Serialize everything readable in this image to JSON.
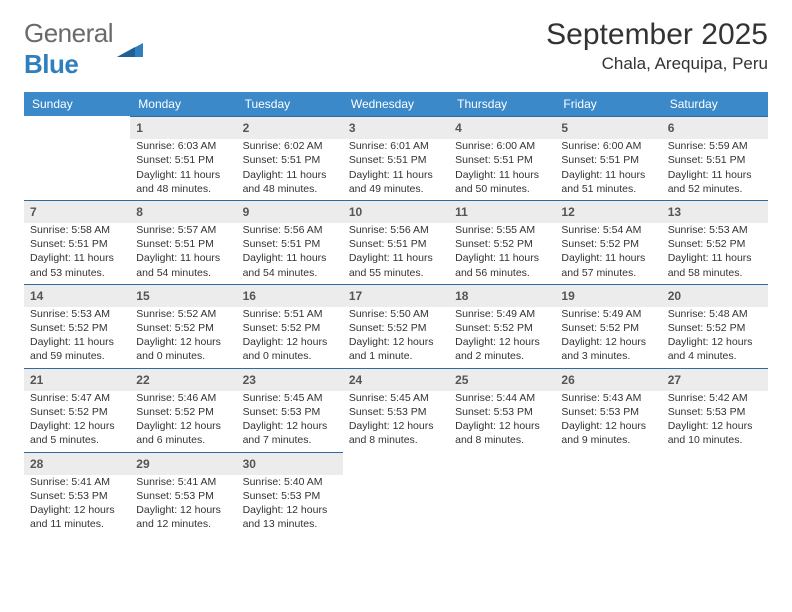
{
  "header": {
    "logo_general": "General",
    "logo_blue": "Blue",
    "month_title": "September 2025",
    "location": "Chala, Arequipa, Peru"
  },
  "colors": {
    "header_bg": "#3b89c9",
    "header_text": "#ffffff",
    "daynum_bg": "#ececec",
    "daynum_border": "#2f6aa0",
    "body_text": "#333333",
    "logo_gray": "#6a6a6a",
    "logo_blue": "#2f7fbf"
  },
  "weekdays": [
    "Sunday",
    "Monday",
    "Tuesday",
    "Wednesday",
    "Thursday",
    "Friday",
    "Saturday"
  ],
  "weeks": [
    [
      null,
      {
        "n": "1",
        "sr": "Sunrise: 6:03 AM",
        "ss": "Sunset: 5:51 PM",
        "dl": "Daylight: 11 hours and 48 minutes."
      },
      {
        "n": "2",
        "sr": "Sunrise: 6:02 AM",
        "ss": "Sunset: 5:51 PM",
        "dl": "Daylight: 11 hours and 48 minutes."
      },
      {
        "n": "3",
        "sr": "Sunrise: 6:01 AM",
        "ss": "Sunset: 5:51 PM",
        "dl": "Daylight: 11 hours and 49 minutes."
      },
      {
        "n": "4",
        "sr": "Sunrise: 6:00 AM",
        "ss": "Sunset: 5:51 PM",
        "dl": "Daylight: 11 hours and 50 minutes."
      },
      {
        "n": "5",
        "sr": "Sunrise: 6:00 AM",
        "ss": "Sunset: 5:51 PM",
        "dl": "Daylight: 11 hours and 51 minutes."
      },
      {
        "n": "6",
        "sr": "Sunrise: 5:59 AM",
        "ss": "Sunset: 5:51 PM",
        "dl": "Daylight: 11 hours and 52 minutes."
      }
    ],
    [
      {
        "n": "7",
        "sr": "Sunrise: 5:58 AM",
        "ss": "Sunset: 5:51 PM",
        "dl": "Daylight: 11 hours and 53 minutes."
      },
      {
        "n": "8",
        "sr": "Sunrise: 5:57 AM",
        "ss": "Sunset: 5:51 PM",
        "dl": "Daylight: 11 hours and 54 minutes."
      },
      {
        "n": "9",
        "sr": "Sunrise: 5:56 AM",
        "ss": "Sunset: 5:51 PM",
        "dl": "Daylight: 11 hours and 54 minutes."
      },
      {
        "n": "10",
        "sr": "Sunrise: 5:56 AM",
        "ss": "Sunset: 5:51 PM",
        "dl": "Daylight: 11 hours and 55 minutes."
      },
      {
        "n": "11",
        "sr": "Sunrise: 5:55 AM",
        "ss": "Sunset: 5:52 PM",
        "dl": "Daylight: 11 hours and 56 minutes."
      },
      {
        "n": "12",
        "sr": "Sunrise: 5:54 AM",
        "ss": "Sunset: 5:52 PM",
        "dl": "Daylight: 11 hours and 57 minutes."
      },
      {
        "n": "13",
        "sr": "Sunrise: 5:53 AM",
        "ss": "Sunset: 5:52 PM",
        "dl": "Daylight: 11 hours and 58 minutes."
      }
    ],
    [
      {
        "n": "14",
        "sr": "Sunrise: 5:53 AM",
        "ss": "Sunset: 5:52 PM",
        "dl": "Daylight: 11 hours and 59 minutes."
      },
      {
        "n": "15",
        "sr": "Sunrise: 5:52 AM",
        "ss": "Sunset: 5:52 PM",
        "dl": "Daylight: 12 hours and 0 minutes."
      },
      {
        "n": "16",
        "sr": "Sunrise: 5:51 AM",
        "ss": "Sunset: 5:52 PM",
        "dl": "Daylight: 12 hours and 0 minutes."
      },
      {
        "n": "17",
        "sr": "Sunrise: 5:50 AM",
        "ss": "Sunset: 5:52 PM",
        "dl": "Daylight: 12 hours and 1 minute."
      },
      {
        "n": "18",
        "sr": "Sunrise: 5:49 AM",
        "ss": "Sunset: 5:52 PM",
        "dl": "Daylight: 12 hours and 2 minutes."
      },
      {
        "n": "19",
        "sr": "Sunrise: 5:49 AM",
        "ss": "Sunset: 5:52 PM",
        "dl": "Daylight: 12 hours and 3 minutes."
      },
      {
        "n": "20",
        "sr": "Sunrise: 5:48 AM",
        "ss": "Sunset: 5:52 PM",
        "dl": "Daylight: 12 hours and 4 minutes."
      }
    ],
    [
      {
        "n": "21",
        "sr": "Sunrise: 5:47 AM",
        "ss": "Sunset: 5:52 PM",
        "dl": "Daylight: 12 hours and 5 minutes."
      },
      {
        "n": "22",
        "sr": "Sunrise: 5:46 AM",
        "ss": "Sunset: 5:52 PM",
        "dl": "Daylight: 12 hours and 6 minutes."
      },
      {
        "n": "23",
        "sr": "Sunrise: 5:45 AM",
        "ss": "Sunset: 5:53 PM",
        "dl": "Daylight: 12 hours and 7 minutes."
      },
      {
        "n": "24",
        "sr": "Sunrise: 5:45 AM",
        "ss": "Sunset: 5:53 PM",
        "dl": "Daylight: 12 hours and 8 minutes."
      },
      {
        "n": "25",
        "sr": "Sunrise: 5:44 AM",
        "ss": "Sunset: 5:53 PM",
        "dl": "Daylight: 12 hours and 8 minutes."
      },
      {
        "n": "26",
        "sr": "Sunrise: 5:43 AM",
        "ss": "Sunset: 5:53 PM",
        "dl": "Daylight: 12 hours and 9 minutes."
      },
      {
        "n": "27",
        "sr": "Sunrise: 5:42 AM",
        "ss": "Sunset: 5:53 PM",
        "dl": "Daylight: 12 hours and 10 minutes."
      }
    ],
    [
      {
        "n": "28",
        "sr": "Sunrise: 5:41 AM",
        "ss": "Sunset: 5:53 PM",
        "dl": "Daylight: 12 hours and 11 minutes."
      },
      {
        "n": "29",
        "sr": "Sunrise: 5:41 AM",
        "ss": "Sunset: 5:53 PM",
        "dl": "Daylight: 12 hours and 12 minutes."
      },
      {
        "n": "30",
        "sr": "Sunrise: 5:40 AM",
        "ss": "Sunset: 5:53 PM",
        "dl": "Daylight: 12 hours and 13 minutes."
      },
      null,
      null,
      null,
      null
    ]
  ]
}
